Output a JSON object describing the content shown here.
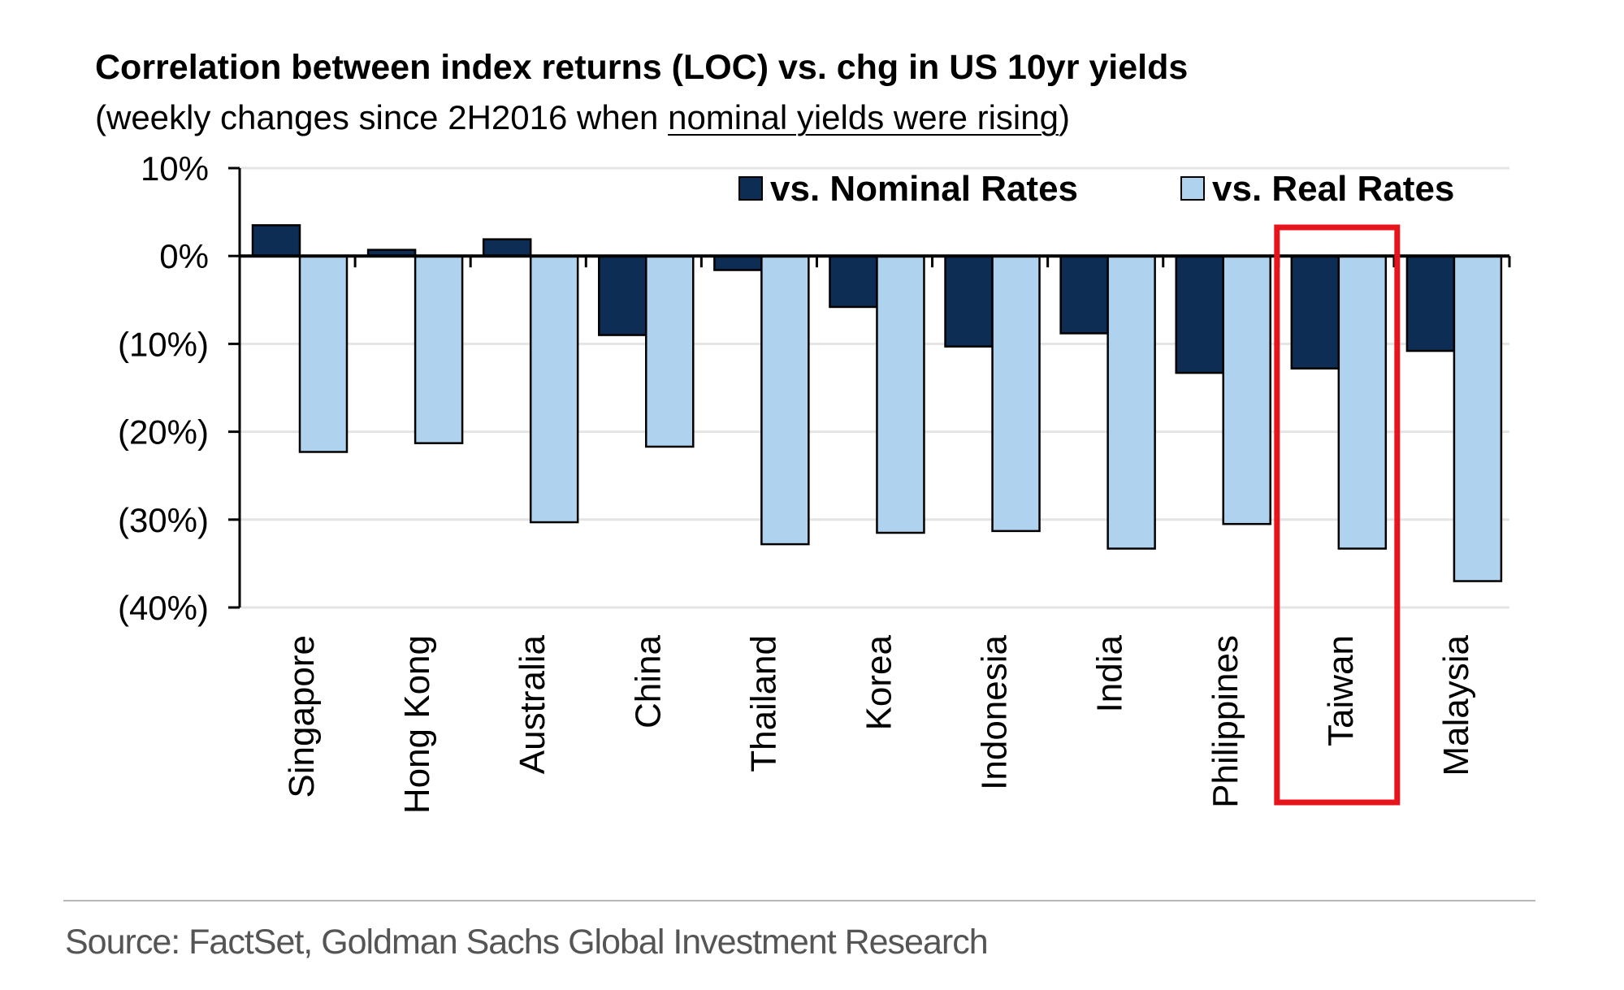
{
  "chart_data": {
    "type": "bar",
    "title": "Correlation between index returns (LOC) vs. chg in US 10yr yields",
    "subtitle_prefix": "(weekly changes since 2H2016 when ",
    "subtitle_underlined": "nominal yields were rising",
    "subtitle_suffix": ")",
    "categories": [
      "Singapore",
      "Hong Kong",
      "Australia",
      "China",
      "Thailand",
      "Korea",
      "Indonesia",
      "India",
      "Philippines",
      "Taiwan",
      "Malaysia"
    ],
    "series": [
      {
        "name": "vs. Nominal Rates",
        "color": "#0d2d55",
        "values": [
          3.5,
          0.7,
          1.9,
          -9.0,
          -1.6,
          -5.8,
          -10.3,
          -8.8,
          -13.3,
          -12.8,
          -10.8
        ]
      },
      {
        "name": "vs. Real Rates",
        "color": "#afd2ef",
        "values": [
          -22.3,
          -21.3,
          -30.3,
          -21.7,
          -32.8,
          -31.5,
          -31.3,
          -33.3,
          -30.5,
          -33.3,
          -37.0
        ]
      }
    ],
    "ylim": [
      -40,
      10
    ],
    "yticks": [
      10,
      0,
      -10,
      -20,
      -30,
      -40
    ],
    "ytick_labels": [
      "10%",
      "0%",
      "(10%)",
      "(20%)",
      "(30%)",
      "(40%)"
    ],
    "grid": true,
    "legend_position": "top-right",
    "highlight": {
      "category": "Taiwan",
      "color": "#e8141b"
    },
    "xlabel": "",
    "ylabel": ""
  },
  "source": "Source: FactSet, Goldman Sachs Global Investment Research"
}
